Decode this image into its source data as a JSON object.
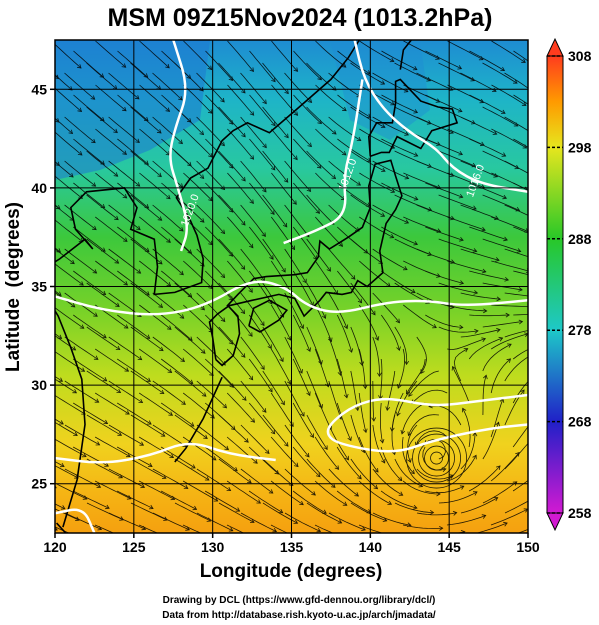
{
  "title": "MSM 09Z15Nov2024 (1013.2hPa)",
  "xlabel": "Longitude (degrees)",
  "ylabel": "Latitude  (degrees)",
  "credits": {
    "line1": "Drawing by DCL (https://www.gfd-dennou.org/library/dcl/)",
    "line2": "Data from http://database.rish.kyoto-u.ac.jp/arch/jmadata/"
  },
  "map": {
    "lon_range": [
      120,
      150
    ],
    "lat_range": [
      22.5,
      47.5
    ],
    "lon_ticks": [
      120,
      125,
      130,
      135,
      140,
      145,
      150
    ],
    "lat_ticks": [
      25,
      30,
      35,
      40,
      45
    ],
    "grid": true,
    "land_color": "#000000",
    "isobar_color": "#ffffff",
    "streamline_color": "#000000"
  },
  "colorbar": {
    "min": 258,
    "max": 308,
    "tick_values": [
      258,
      268,
      278,
      288,
      298,
      308
    ],
    "colors": [
      "#d21ad2",
      "#2020c8",
      "#1ec8c8",
      "#28c828",
      "#e6e61e",
      "#ff9a00",
      "#ff3c1e"
    ]
  },
  "isobar_labels": [
    {
      "text": "1016.0",
      "lon": 146.5,
      "lat": 39.5
    },
    {
      "text": "1012.0",
      "lon": 138.4,
      "lat": 39.8
    },
    {
      "text": "1020.0",
      "lon": 128.4,
      "lat": 38.0
    }
  ],
  "low_center": {
    "lon": 144.2,
    "lat": 26.3
  }
}
